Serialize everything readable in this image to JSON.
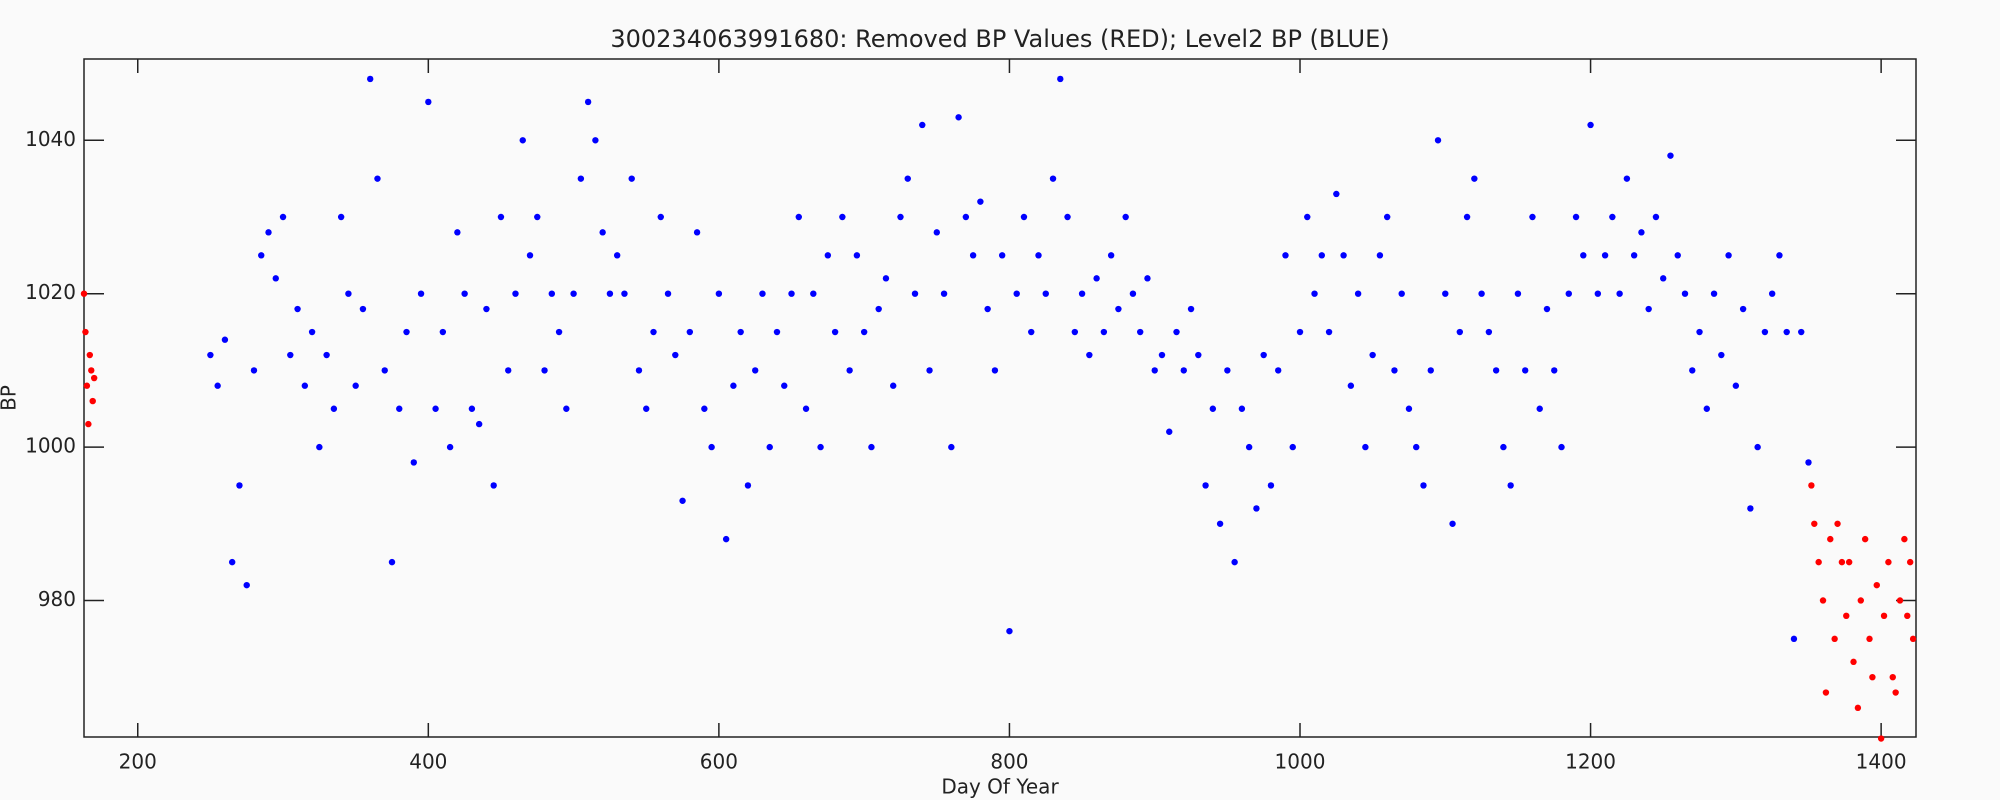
{
  "chart_data": {
    "type": "scatter",
    "title": "300234063991680: Removed BP Values (RED); Level2 BP (BLUE)",
    "x_label": "Day Of Year",
    "y_label": "BP",
    "xlim": [
      163,
      1424
    ],
    "xticks": [
      200,
      400,
      600,
      800,
      1000,
      1200,
      1400
    ],
    "ylim": [
      962.2,
      1050.6
    ],
    "yticks": [
      980,
      1000,
      1020,
      1040
    ],
    "series": [
      {
        "color": "#0000ff",
        "x": [
          250,
          255,
          260,
          265,
          270,
          275,
          280,
          285,
          290,
          295,
          300,
          305,
          310,
          315,
          320,
          325,
          330,
          335,
          340,
          345,
          350,
          355,
          360,
          365,
          370,
          375,
          380,
          385,
          390,
          395,
          400,
          405,
          410,
          415,
          420,
          425,
          430,
          435,
          440,
          445,
          450,
          455,
          460,
          465,
          470,
          475,
          480,
          485,
          490,
          495,
          500,
          505,
          510,
          515,
          520,
          525,
          530,
          535,
          540,
          545,
          550,
          555,
          560,
          565,
          570,
          575,
          580,
          585,
          590,
          595,
          600,
          605,
          610,
          615,
          620,
          625,
          630,
          635,
          640,
          645,
          650,
          655,
          660,
          665,
          670,
          675,
          680,
          685,
          690,
          695,
          700,
          705,
          710,
          715,
          720,
          725,
          730,
          735,
          740,
          745,
          750,
          755,
          760,
          765,
          770,
          775,
          780,
          785,
          790,
          795,
          800,
          805,
          810,
          815,
          820,
          825,
          830,
          835,
          840,
          845,
          850,
          855,
          860,
          865,
          870,
          875,
          880,
          885,
          890,
          895,
          900,
          905,
          910,
          915,
          920,
          925,
          930,
          935,
          940,
          945,
          950,
          955,
          960,
          965,
          970,
          975,
          980,
          985,
          990,
          995,
          1000,
          1005,
          1010,
          1015,
          1020,
          1025,
          1030,
          1035,
          1040,
          1045,
          1050,
          1055,
          1060,
          1065,
          1070,
          1075,
          1080,
          1085,
          1090,
          1095,
          1100,
          1105,
          1110,
          1115,
          1120,
          1125,
          1130,
          1135,
          1140,
          1145,
          1150,
          1155,
          1160,
          1165,
          1170,
          1175,
          1180,
          1185,
          1190,
          1195,
          1200,
          1205,
          1210,
          1215,
          1220,
          1225,
          1230,
          1235,
          1240,
          1245,
          1250,
          1255,
          1260,
          1265,
          1270,
          1275,
          1280,
          1285,
          1290,
          1295,
          1300,
          1305,
          1310,
          1315,
          1320,
          1325,
          1330,
          1335,
          1340,
          1345,
          1350
        ],
        "values": [
          1012,
          1008,
          1014,
          985,
          995,
          982,
          1010,
          1025,
          1028,
          1022,
          1030,
          1012,
          1018,
          1008,
          1015,
          1000,
          1012,
          1005,
          1030,
          1020,
          1008,
          1018,
          1048,
          1035,
          1010,
          985,
          1005,
          1015,
          998,
          1020,
          1045,
          1005,
          1015,
          1000,
          1028,
          1020,
          1005,
          1003,
          1018,
          995,
          1030,
          1010,
          1020,
          1040,
          1025,
          1030,
          1010,
          1020,
          1015,
          1005,
          1020,
          1035,
          1045,
          1040,
          1028,
          1020,
          1025,
          1020,
          1035,
          1010,
          1005,
          1015,
          1030,
          1020,
          1012,
          993,
          1015,
          1028,
          1005,
          1000,
          1020,
          988,
          1008,
          1015,
          995,
          1010,
          1020,
          1000,
          1015,
          1008,
          1020,
          1030,
          1005,
          1020,
          1000,
          1025,
          1015,
          1030,
          1010,
          1025,
          1015,
          1000,
          1018,
          1022,
          1008,
          1030,
          1035,
          1020,
          1042,
          1010,
          1028,
          1020,
          1000,
          1043,
          1030,
          1025,
          1032,
          1018,
          1010,
          1025,
          976,
          1020,
          1030,
          1015,
          1025,
          1020,
          1035,
          1048,
          1030,
          1015,
          1020,
          1012,
          1022,
          1015,
          1025,
          1018,
          1030,
          1020,
          1015,
          1022,
          1010,
          1012,
          1002,
          1015,
          1010,
          1018,
          1012,
          995,
          1005,
          990,
          1010,
          985,
          1005,
          1000,
          992,
          1012,
          995,
          1010,
          1025,
          1000,
          1015,
          1030,
          1020,
          1025,
          1015,
          1033,
          1025,
          1008,
          1020,
          1000,
          1012,
          1025,
          1030,
          1010,
          1020,
          1005,
          1000,
          995,
          1010,
          1040,
          1020,
          990,
          1015,
          1030,
          1035,
          1020,
          1015,
          1010,
          1000,
          995,
          1020,
          1010,
          1030,
          1005,
          1018,
          1010,
          1000,
          1020,
          1030,
          1025,
          1042,
          1020,
          1025,
          1030,
          1020,
          1035,
          1025,
          1028,
          1018,
          1030,
          1022,
          1038,
          1025,
          1020,
          1010,
          1015,
          1005,
          1020,
          1012,
          1025,
          1008,
          1018,
          992,
          1000,
          1015,
          1020,
          1025,
          1015,
          975,
          1015,
          998
        ]
      },
      {
        "color": "#ff0000",
        "x": [
          163,
          164,
          165,
          166,
          167,
          168,
          169,
          170,
          1352,
          1354,
          1357,
          1360,
          1362,
          1365,
          1368,
          1370,
          1373,
          1376,
          1378,
          1381,
          1384,
          1386,
          1389,
          1392,
          1394,
          1397,
          1400,
          1402,
          1405,
          1408,
          1410,
          1413,
          1416,
          1418,
          1420,
          1422
        ],
        "values": [
          1020,
          1015,
          1008,
          1003,
          1012,
          1010,
          1006,
          1009,
          995,
          990,
          985,
          980,
          968,
          988,
          975,
          990,
          985,
          978,
          985,
          972,
          966,
          980,
          988,
          975,
          970,
          982,
          962,
          978,
          985,
          970,
          968,
          980,
          988,
          978,
          985,
          975
        ]
      }
    ]
  }
}
